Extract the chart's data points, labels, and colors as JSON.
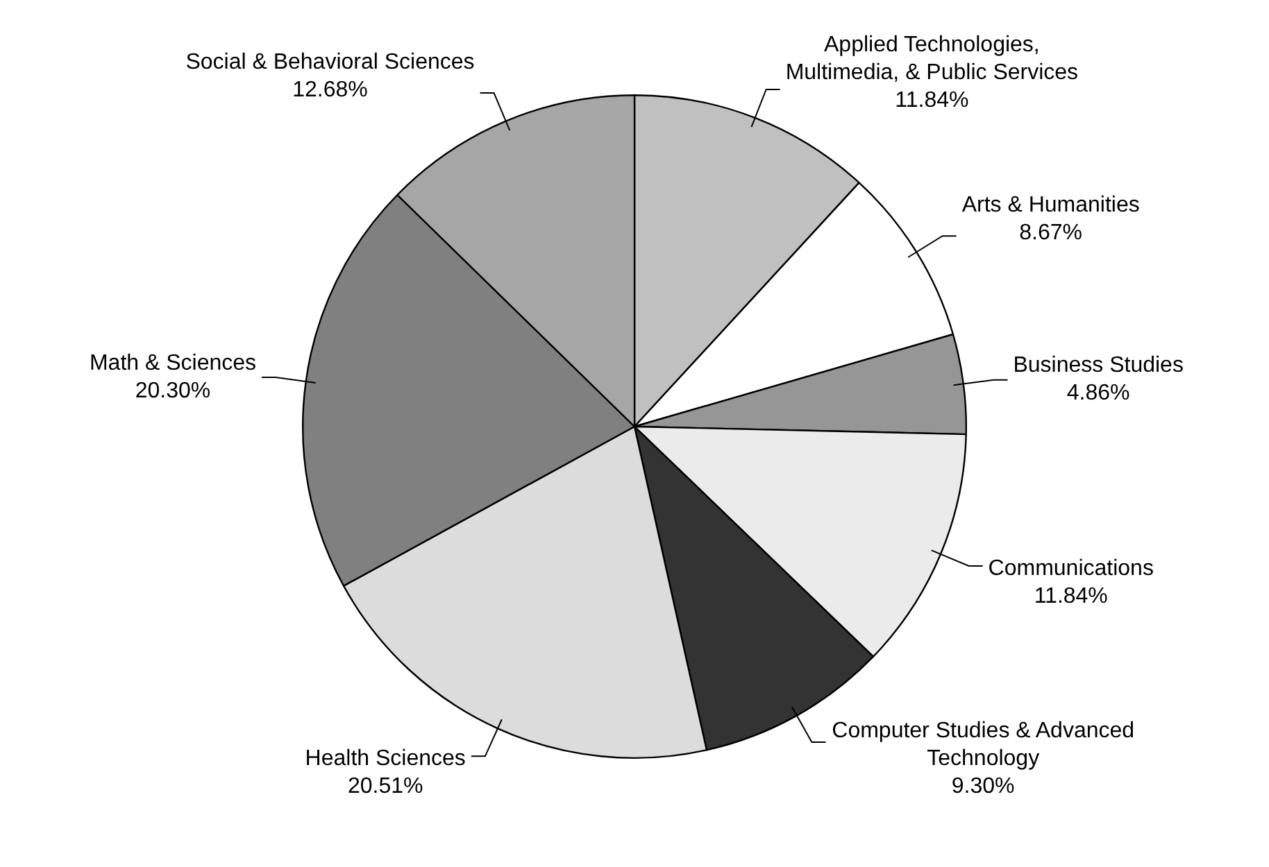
{
  "chart_data": {
    "type": "pie",
    "categories": [
      "Applied Technologies, Multimedia, & Public Services",
      "Arts & Humanities",
      "Business Studies",
      "Communications",
      "Computer Studies & Advanced Technology",
      "Health Sciences",
      "Math & Sciences",
      "Social & Behavioral Sciences"
    ],
    "values": [
      11.84,
      8.67,
      4.86,
      11.84,
      9.3,
      20.51,
      20.3,
      12.68
    ],
    "value_labels": [
      "11.84%",
      "8.67%",
      "4.86%",
      "11.84%",
      "9.30%",
      "20.51%",
      "20.30%",
      "12.68%"
    ],
    "colors": [
      "#c0c0c0",
      "#ffffff",
      "#969696",
      "#ebebeb",
      "#333333",
      "#dcdcdc",
      "#808080",
      "#a6a6a6"
    ]
  }
}
